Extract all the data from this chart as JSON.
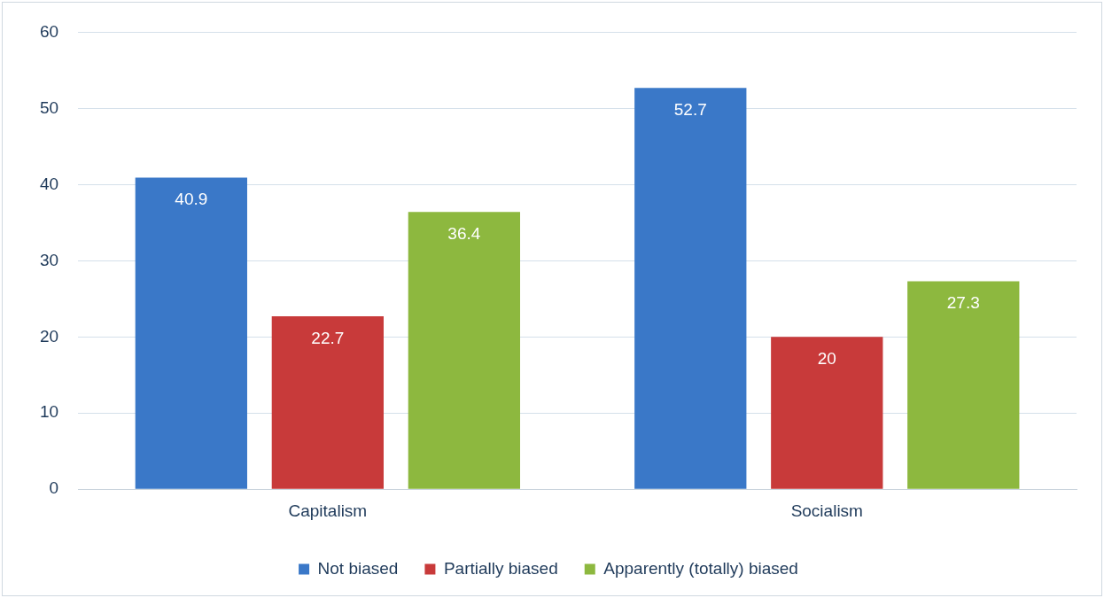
{
  "chart_data": {
    "type": "bar",
    "categories": [
      "Capitalism",
      "Socialism"
    ],
    "series": [
      {
        "name": "Not biased",
        "color": "#3a78c8",
        "values": [
          40.9,
          52.7
        ]
      },
      {
        "name": "Partially biased",
        "color": "#c83a3a",
        "values": [
          22.7,
          20
        ]
      },
      {
        "name": "Apparently (totally) biased",
        "color": "#8db83f",
        "values": [
          36.4,
          27.3
        ]
      }
    ],
    "ylim": [
      0,
      60
    ],
    "yticks": [
      0,
      10,
      20,
      30,
      40,
      50,
      60
    ],
    "grid": "y",
    "legend": "bottom",
    "data_labels": true
  }
}
